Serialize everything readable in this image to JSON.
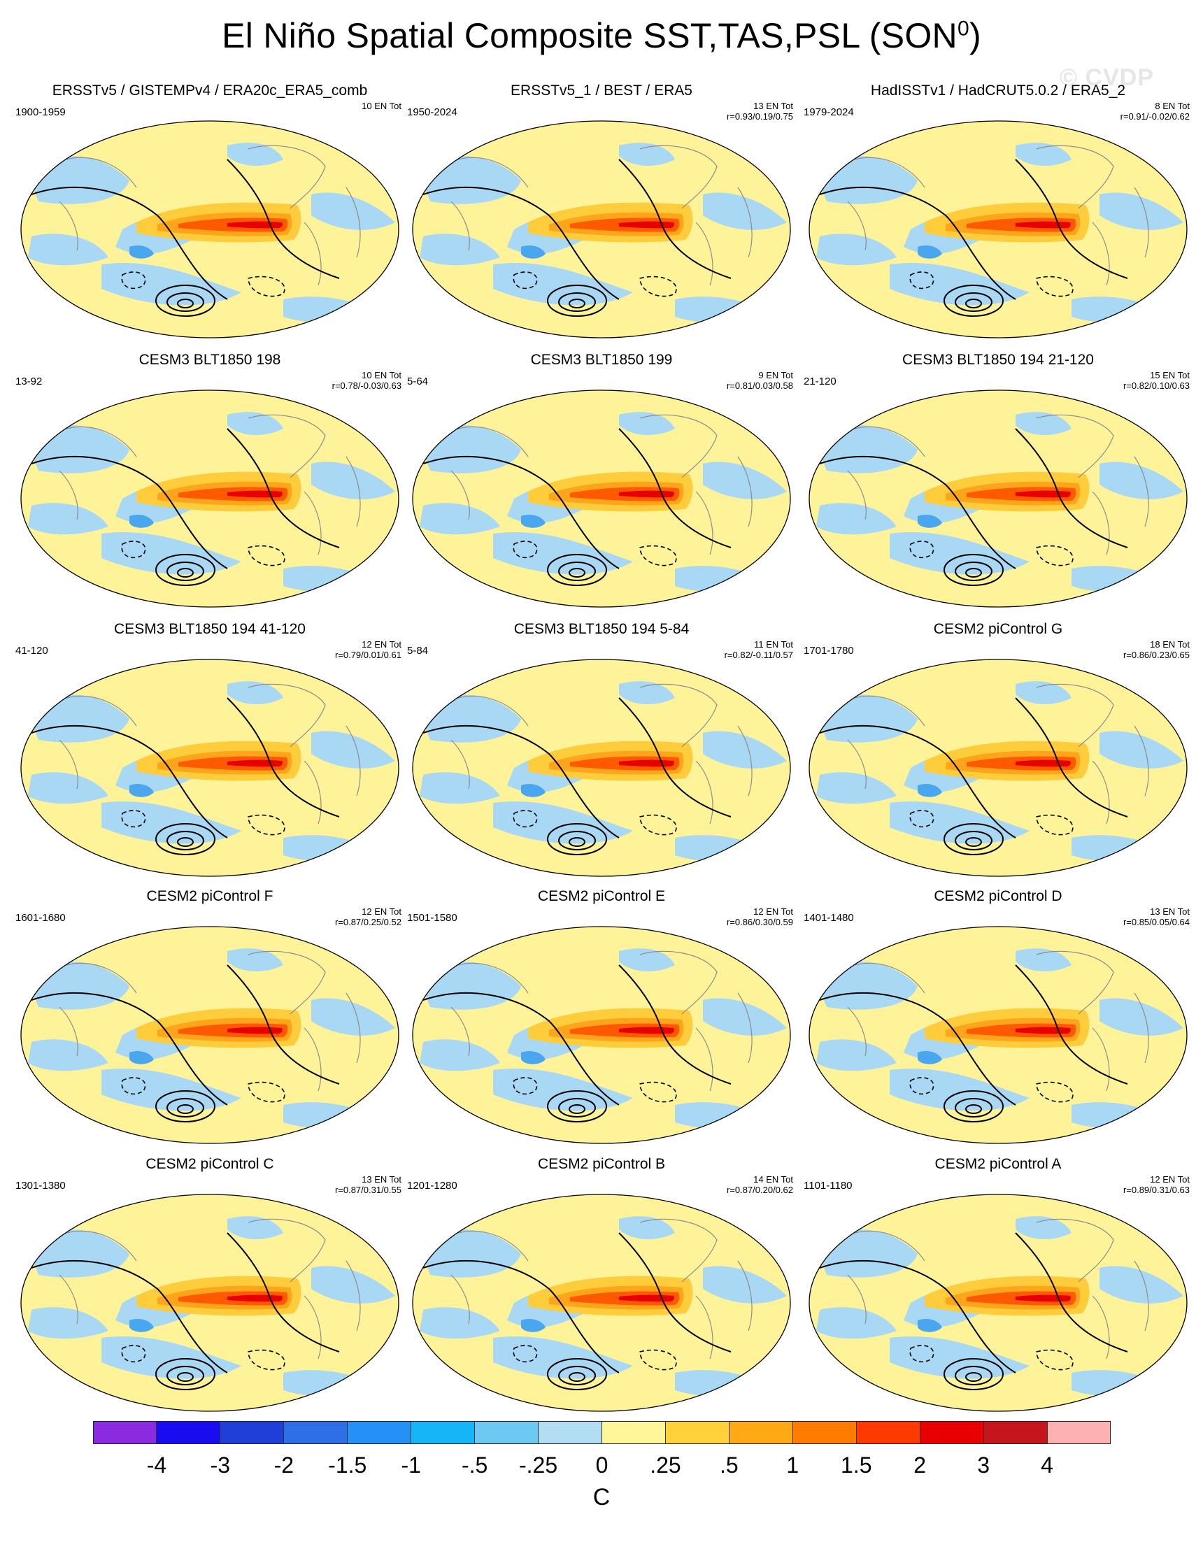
{
  "title": "El Niño Spatial Composite SST,TAS,PSL (SON",
  "title_superscript": "0",
  "title_close": ")",
  "watermark": "© CVDP",
  "panels": [
    {
      "title": "ERSSTv5 / GISTEMPv4 / ERA20c_ERA5_comb",
      "period": "1900-1959",
      "count": "10 EN Tot",
      "r": ""
    },
    {
      "title": "ERSSTv5_1 / BEST / ERA5",
      "period": "1950-2024",
      "count": "13 EN Tot",
      "r": "r=0.93/0.19/0.75"
    },
    {
      "title": "HadISSTv1 / HadCRUT5.0.2 / ERA5_2",
      "period": "1979-2024",
      "count": "8 EN Tot",
      "r": "r=0.91/-0.02/0.62"
    },
    {
      "title": "CESM3 BLT1850 198",
      "period": "13-92",
      "count": "10 EN Tot",
      "r": "r=0.78/-0.03/0.63"
    },
    {
      "title": "CESM3 BLT1850 199",
      "period": "5-64",
      "count": "9 EN Tot",
      "r": "r=0.81/0.03/0.58"
    },
    {
      "title": "CESM3 BLT1850 194 21-120",
      "period": "21-120",
      "count": "15 EN Tot",
      "r": "r=0.82/0.10/0.63"
    },
    {
      "title": "CESM3 BLT1850 194 41-120",
      "period": "41-120",
      "count": "12 EN Tot",
      "r": "r=0.79/0.01/0.61"
    },
    {
      "title": "CESM3 BLT1850 194 5-84",
      "period": "5-84",
      "count": "11 EN Tot",
      "r": "r=0.82/-0.11/0.57"
    },
    {
      "title": "CESM2 piControl G",
      "period": "1701-1780",
      "count": "18 EN Tot",
      "r": "r=0.86/0.23/0.65"
    },
    {
      "title": "CESM2 piControl F",
      "period": "1601-1680",
      "count": "12 EN Tot",
      "r": "r=0.87/0.25/0.52"
    },
    {
      "title": "CESM2 piControl E",
      "period": "1501-1580",
      "count": "12 EN Tot",
      "r": "r=0.86/0.30/0.59"
    },
    {
      "title": "CESM2 piControl D",
      "period": "1401-1480",
      "count": "13 EN Tot",
      "r": "r=0.85/0.05/0.64"
    },
    {
      "title": "CESM2 piControl C",
      "period": "1301-1380",
      "count": "13 EN Tot",
      "r": "r=0.87/0.31/0.55"
    },
    {
      "title": "CESM2 piControl B",
      "period": "1201-1280",
      "count": "14 EN Tot",
      "r": "r=0.87/0.20/0.62"
    },
    {
      "title": "CESM2 piControl A",
      "period": "1101-1180",
      "count": "12 EN Tot",
      "r": "r=0.89/0.31/0.63"
    }
  ],
  "colorbar": {
    "colors": [
      "#8a2be2",
      "#1a0cf0",
      "#1f3fd8",
      "#2f6fe6",
      "#2590f5",
      "#14b6f5",
      "#6ec9f2",
      "#b3ddf2",
      "#fff69a",
      "#ffd23a",
      "#ffa914",
      "#ff7c00",
      "#ff3a00",
      "#e80000",
      "#c4161c",
      "#ffb0b0"
    ],
    "labels": [
      "-4",
      "-3",
      "-2",
      "-1.5",
      "-1",
      "-.5",
      "-.25",
      "0",
      ".25",
      ".5",
      "1",
      "1.5",
      "2",
      "3",
      "4"
    ],
    "units": "C"
  },
  "map_colors": {
    "background": "#fff39a",
    "cool": "#a9d8f5",
    "cooler": "#4aa6ef",
    "warm": "#ffcd3c",
    "warmer": "#ffa51c",
    "hot": "#ff5a00",
    "hottest": "#e60000",
    "land_outline": "#8c8c8c",
    "contour": "#000000"
  }
}
